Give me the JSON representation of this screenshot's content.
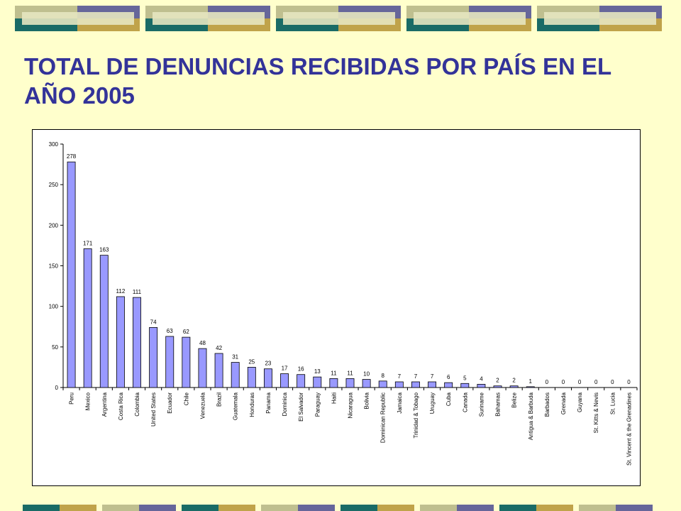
{
  "slide": {
    "title": "TOTAL DE DENUNCIAS RECIBIDAS POR PAÍS EN EL AÑO 2005"
  },
  "colors": {
    "background": "#ffffcc",
    "title": "#333399",
    "bar_fill": "#9999ff",
    "deco_green": "#bfbf8f",
    "deco_blue": "#66669a",
    "deco_teal": "#1a6b66",
    "deco_gold": "#c0a34a"
  },
  "chart_data": {
    "type": "bar",
    "title": "",
    "xlabel": "",
    "ylabel": "",
    "ylim": [
      0,
      300
    ],
    "yticks": [
      0,
      50,
      100,
      150,
      200,
      250,
      300
    ],
    "grid": false,
    "legend": "none",
    "data_labels": true,
    "categories": [
      "Peru",
      "Mexico",
      "Argentina",
      "Costa Rica",
      "Colombia",
      "United States",
      "Ecuador",
      "Chile",
      "Venezuela",
      "Brazil",
      "Guatemala",
      "Honduras",
      "Panama",
      "Dominica",
      "El Salvador",
      "Paraguay",
      "Haiti",
      "Nicaragua",
      "Bolivia",
      "Dominican Republic",
      "Jamaica",
      "Trinidad & Tobago",
      "Uruguay",
      "Cuba",
      "Canada",
      "Suriname",
      "Bahamas",
      "Belize",
      "Antigua & Barbuda",
      "Barbados",
      "Grenada",
      "Guyana",
      "St. Kitts & Nevis",
      "St. Lucia",
      "St. Vincent & the Grenadines"
    ],
    "values": [
      278,
      171,
      163,
      112,
      111,
      74,
      63,
      62,
      48,
      42,
      31,
      25,
      23,
      17,
      16,
      13,
      11,
      11,
      10,
      8,
      7,
      7,
      7,
      6,
      5,
      4,
      2,
      2,
      1,
      0,
      0,
      0,
      0,
      0,
      0
    ]
  }
}
